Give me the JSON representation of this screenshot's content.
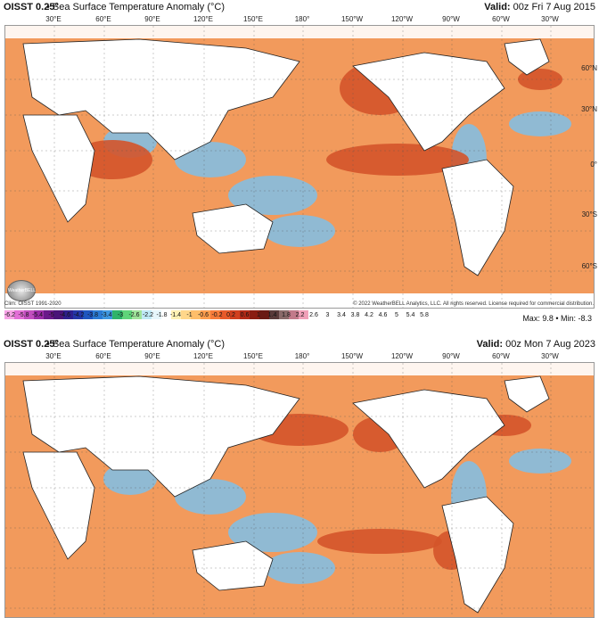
{
  "panel_top": {
    "product": "OISST 0.25°",
    "description": "• Sea Surface Temperature Anomaly (°C)",
    "valid_label": "Valid:",
    "valid_time": "00z Fri 7 Aug 2015",
    "clim": "Clim: OISST 1991-2020",
    "copyright": "© 2022 WeatherBELL Analytics, LLC. All rights reserved. License required for commercial distribution.",
    "max_min": "Max: 9.8 • Min: -8.3"
  },
  "panel_bottom": {
    "product": "OISST 0.25°",
    "description": "• Sea Surface Temperature Anomaly (°C)",
    "valid_label": "Valid:",
    "valid_time": "00z Mon 7 Aug 2023"
  },
  "logo_text": "WeatherBELL",
  "lon_labels": [
    "30°E",
    "60°E",
    "90°E",
    "120°E",
    "150°E",
    "180°",
    "150°W",
    "120°W",
    "90°W",
    "60°W",
    "30°W"
  ],
  "lat_labels": [
    "60°N",
    "30°N",
    "0°",
    "30°S",
    "60°S"
  ],
  "colorbar_ticks": [
    "-6.2",
    "-5.8",
    "-5.4",
    "-5",
    "-4.6",
    "-4.2",
    "-3.8",
    "-3.4",
    "-3",
    "-2.6",
    "-2.2",
    "-1.8",
    "-1.4",
    "-1",
    "-0.6",
    "-0.2",
    "0.2",
    "0.6",
    "1",
    "1.4",
    "1.8",
    "2.2",
    "2.6",
    "3",
    "3.4",
    "3.8",
    "4.2",
    "4.6",
    "5",
    "5.4",
    "5.8"
  ],
  "colorbar_colors": [
    "#f7a3e6",
    "#e36fd6",
    "#c24fbf",
    "#9b2ea8",
    "#6a1a8a",
    "#4a1478",
    "#2e1f8e",
    "#2436a8",
    "#1f56c0",
    "#2a7bd4",
    "#3f98e0",
    "#2fb36a",
    "#5fd47a",
    "#9fe39a",
    "#bfe9f5",
    "#e6f6fb",
    "#ffffff",
    "#fff0b3",
    "#ffd78a",
    "#ffbe6a",
    "#ff9e4f",
    "#f77c3b",
    "#e85a2a",
    "#d13f1e",
    "#b22a17",
    "#8a1d12",
    "#6a1a14",
    "#5a3a3a",
    "#8a6a6a",
    "#c27a8a",
    "#f0a0b8"
  ],
  "colors": {
    "ocean_warm": "#f29a5c",
    "ocean_hot": "#d4542a",
    "ocean_cool": "#7fbfe8",
    "land": "#ffffff",
    "coast": "#222222",
    "ice": "#ffffff"
  }
}
